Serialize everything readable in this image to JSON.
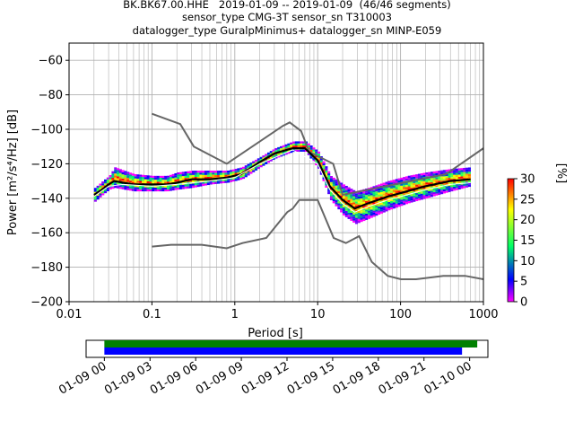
{
  "header": {
    "line1": "BK.BK67.00.HHE   2019-01-09 -- 2019-01-09  (46/46 segments)",
    "line2": "sensor_type CMG-3T sensor_sn T310003",
    "line3": "datalogger_type GuralpMinimus+ datalogger_sn MINP-E059"
  },
  "chart_data": [
    {
      "type": "heatmap",
      "title": "BK.BK67.00.HHE   2019-01-09 -- 2019-01-09  (46/46 segments)",
      "xlabel": "Period [s]",
      "ylabel": "Power [m²/s⁴/Hz] [dB]",
      "x_scale": "log",
      "xlim": [
        0.01,
        1000
      ],
      "ylim": [
        -200,
        -50
      ],
      "x_ticks": [
        0.01,
        0.1,
        1,
        10,
        100,
        1000
      ],
      "x_tick_labels": [
        "0.01",
        "0.1",
        "1",
        "10",
        "100",
        "1000"
      ],
      "y_ticks": [
        -200,
        -180,
        -160,
        -140,
        -120,
        -100,
        -80,
        -60
      ],
      "grid": true,
      "colorbar": {
        "label": "[%]",
        "range": [
          0,
          30
        ],
        "ticks": [
          0,
          5,
          10,
          15,
          20,
          25,
          30
        ],
        "colormap": [
          "#ff00ff",
          "#0000ff",
          "#00ff66",
          "#ffff00",
          "#ff0000"
        ]
      },
      "series": [
        {
          "role": "high-noise-model",
          "color": "#666666",
          "points": [
            [
              0.1,
              -91
            ],
            [
              0.22,
              -97
            ],
            [
              0.32,
              -110
            ],
            [
              0.8,
              -120
            ],
            [
              3.8,
              -98
            ],
            [
              4.6,
              -96
            ],
            [
              6.3,
              -101
            ],
            [
              7.9,
              -113
            ],
            [
              15.4,
              -120
            ],
            [
              20,
              -138
            ],
            [
              354.8,
              -126
            ],
            [
              1000,
              -111
            ]
          ]
        },
        {
          "role": "low-noise-model",
          "color": "#666666",
          "points": [
            [
              0.1,
              -168
            ],
            [
              0.17,
              -167
            ],
            [
              0.4,
              -167
            ],
            [
              0.8,
              -169
            ],
            [
              1.24,
              -166
            ],
            [
              2.4,
              -163
            ],
            [
              4.3,
              -148
            ],
            [
              5.0,
              -146
            ],
            [
              6.0,
              -141
            ],
            [
              10,
              -141
            ],
            [
              12,
              -150
            ],
            [
              15.6,
              -163
            ],
            [
              21.9,
              -166
            ],
            [
              31.6,
              -162
            ],
            [
              45,
              -177
            ],
            [
              70,
              -185
            ],
            [
              101,
              -187
            ],
            [
              154,
              -187
            ],
            [
              328,
              -185
            ],
            [
              600,
              -185
            ],
            [
              1000,
              -187
            ],
            [
              3000,
              -184
            ],
            [
              10000,
              -178
            ]
          ]
        },
        {
          "role": "mode",
          "color": "#000000",
          "points": [
            [
              0.02,
              -138
            ],
            [
              0.025,
              -135
            ],
            [
              0.03,
              -132
            ],
            [
              0.035,
              -130
            ],
            [
              0.045,
              -131
            ],
            [
              0.06,
              -132
            ],
            [
              0.1,
              -132
            ],
            [
              0.15,
              -132
            ],
            [
              0.2,
              -131
            ],
            [
              0.3,
              -129
            ],
            [
              0.5,
              -129
            ],
            [
              0.8,
              -128
            ],
            [
              1.2,
              -126
            ],
            [
              2,
              -119
            ],
            [
              3,
              -114
            ],
            [
              5,
              -111
            ],
            [
              7,
              -111
            ],
            [
              10,
              -118
            ],
            [
              14,
              -133
            ],
            [
              20,
              -141
            ],
            [
              28,
              -146
            ],
            [
              40,
              -143
            ],
            [
              70,
              -139
            ],
            [
              120,
              -136
            ],
            [
              200,
              -133
            ],
            [
              400,
              -130
            ],
            [
              700,
              -129
            ]
          ]
        },
        {
          "role": "mean",
          "color": "#ffffff",
          "points": [
            [
              0.02,
              -139
            ],
            [
              0.03,
              -133
            ],
            [
              0.045,
              -132
            ],
            [
              0.1,
              -133
            ],
            [
              0.2,
              -132
            ],
            [
              0.5,
              -130
            ],
            [
              1,
              -128
            ],
            [
              2,
              -120
            ],
            [
              5,
              -112
            ],
            [
              10,
              -120
            ],
            [
              14,
              -135
            ],
            [
              20,
              -143
            ],
            [
              28,
              -148
            ],
            [
              40,
              -145
            ],
            [
              70,
              -141
            ],
            [
              120,
              -138
            ],
            [
              200,
              -135
            ],
            [
              400,
              -132
            ],
            [
              700,
              -131
            ]
          ]
        }
      ],
      "psd_cloud": {
        "period": [
          0.02,
          0.025,
          0.03,
          0.035,
          0.045,
          0.06,
          0.1,
          0.15,
          0.2,
          0.3,
          0.5,
          0.8,
          1.2,
          2,
          3,
          5,
          7,
          10,
          14,
          20,
          28,
          40,
          70,
          120,
          200,
          400,
          700
        ],
        "low_db": [
          -142,
          -138,
          -135,
          -134,
          -135,
          -136,
          -136,
          -136,
          -135,
          -134,
          -132,
          -131,
          -129,
          -122,
          -117,
          -113,
          -113,
          -123,
          -141,
          -150,
          -155,
          -152,
          -147,
          -143,
          -140,
          -136,
          -133
        ],
        "high_db": [
          -134,
          -130,
          -127,
          -122,
          -124,
          -126,
          -127,
          -127,
          -125,
          -124,
          -124,
          -124,
          -122,
          -116,
          -111,
          -107,
          -107,
          -113,
          -127,
          -132,
          -136,
          -134,
          -130,
          -127,
          -125,
          -123,
          -122
        ]
      }
    },
    {
      "type": "bar",
      "title": "",
      "orientation": "horizontal",
      "time_axis_labels": [
        "01-09 00",
        "01-09 03",
        "01-09 06",
        "01-09 09",
        "01-09 12",
        "01-09 15",
        "01-09 18",
        "01-09 21",
        "01-10 00"
      ],
      "time_ticks_hours": [
        0,
        3,
        6,
        9,
        12,
        15,
        18,
        21,
        24
      ],
      "xlim_hours": [
        -1.2,
        25.2
      ],
      "series": [
        {
          "role": "data-coverage",
          "color": "#008000",
          "start_hours": 0,
          "end_hours": 24.5
        },
        {
          "role": "psd-coverage",
          "color": "#0000ff",
          "start_hours": 0,
          "end_hours": 23.5
        }
      ]
    }
  ]
}
